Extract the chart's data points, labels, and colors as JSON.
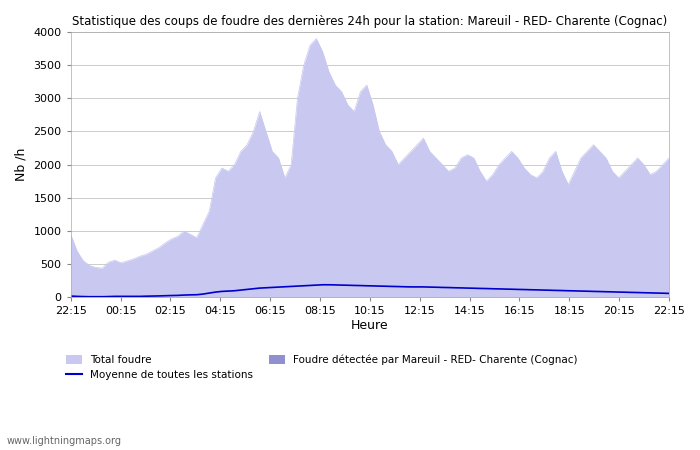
{
  "title": "Statistique des coups de foudre des dernières 24h pour la station: Mareuil - RED- Charente (Cognac)",
  "xlabel": "Heure",
  "ylabel": "Nb /h",
  "watermark": "www.lightningmaps.org",
  "legend": {
    "total_foudre": "Total foudre",
    "moyenne": "Moyenne de toutes les stations",
    "station": "Foudre détectée par Mareuil - RED- Charente (Cognac)"
  },
  "x_ticks": [
    "22:15",
    "00:15",
    "02:15",
    "04:15",
    "06:15",
    "08:15",
    "10:15",
    "12:15",
    "14:15",
    "16:15",
    "18:15",
    "20:15",
    "22:15"
  ],
  "ylim": [
    0,
    4000
  ],
  "y_ticks": [
    0,
    500,
    1000,
    1500,
    2000,
    2500,
    3000,
    3500,
    4000
  ],
  "total_foudre_color": "#c8c8f0",
  "station_color": "#9090d0",
  "moyenne_color": "#0000cc",
  "background_color": "#ffffff",
  "grid_color": "#cccccc",
  "total_foudre_values": [
    950,
    700,
    550,
    480,
    450,
    440,
    530,
    560,
    520,
    550,
    580,
    620,
    650,
    700,
    750,
    820,
    880,
    920,
    1000,
    950,
    900,
    1100,
    1300,
    1800,
    1950,
    1900,
    2000,
    2200,
    2300,
    2500,
    2800,
    2500,
    2200,
    2100,
    1800,
    2000,
    3000,
    3500,
    3800,
    3900,
    3700,
    3400,
    3200,
    3100,
    2900,
    2800,
    3100,
    3200,
    2900,
    2500,
    2300,
    2200,
    2000,
    2100,
    2200,
    2300,
    2400,
    2200,
    2100,
    2000,
    1900,
    1950,
    2100,
    2150,
    2100,
    1900,
    1750,
    1850,
    2000,
    2100,
    2200,
    2100,
    1950,
    1850,
    1800,
    1900,
    2100,
    2200,
    1900,
    1700,
    1900,
    2100,
    2200,
    2300,
    2200,
    2100,
    1900,
    1800,
    1900,
    2000,
    2100,
    2000,
    1850,
    1900,
    2000,
    2100
  ],
  "station_values": [
    0,
    0,
    0,
    0,
    0,
    0,
    0,
    0,
    0,
    0,
    0,
    0,
    0,
    0,
    0,
    0,
    0,
    0,
    0,
    0,
    0,
    0,
    0,
    0,
    0,
    0,
    0,
    0,
    0,
    0,
    0,
    0,
    0,
    0,
    0,
    0,
    0,
    0,
    0,
    0,
    0,
    0,
    0,
    0,
    0,
    0,
    0,
    0,
    0,
    0,
    0,
    0,
    0,
    0,
    0,
    0,
    0,
    0,
    0,
    0,
    0,
    0,
    0,
    0,
    0,
    0,
    0,
    0,
    0,
    0,
    0,
    0,
    0,
    0,
    0,
    0,
    0,
    0,
    0,
    0,
    0,
    0,
    0,
    0,
    0,
    0,
    0,
    0,
    0,
    0,
    0,
    0,
    0,
    0,
    0,
    0
  ],
  "moyenne_values": [
    20,
    15,
    12,
    10,
    10,
    10,
    12,
    15,
    15,
    15,
    15,
    15,
    18,
    20,
    22,
    25,
    28,
    30,
    35,
    38,
    40,
    50,
    65,
    80,
    90,
    95,
    100,
    110,
    120,
    130,
    140,
    145,
    150,
    155,
    160,
    165,
    170,
    175,
    180,
    185,
    190,
    190,
    188,
    185,
    183,
    180,
    178,
    175,
    173,
    170,
    168,
    165,
    163,
    160,
    158,
    158,
    158,
    155,
    153,
    150,
    148,
    145,
    143,
    140,
    138,
    135,
    133,
    130,
    128,
    125,
    123,
    120,
    118,
    115,
    113,
    110,
    108,
    105,
    103,
    100,
    98,
    95,
    93,
    90,
    88,
    85,
    83,
    80,
    78,
    75,
    73,
    70,
    68,
    65,
    63,
    60
  ]
}
